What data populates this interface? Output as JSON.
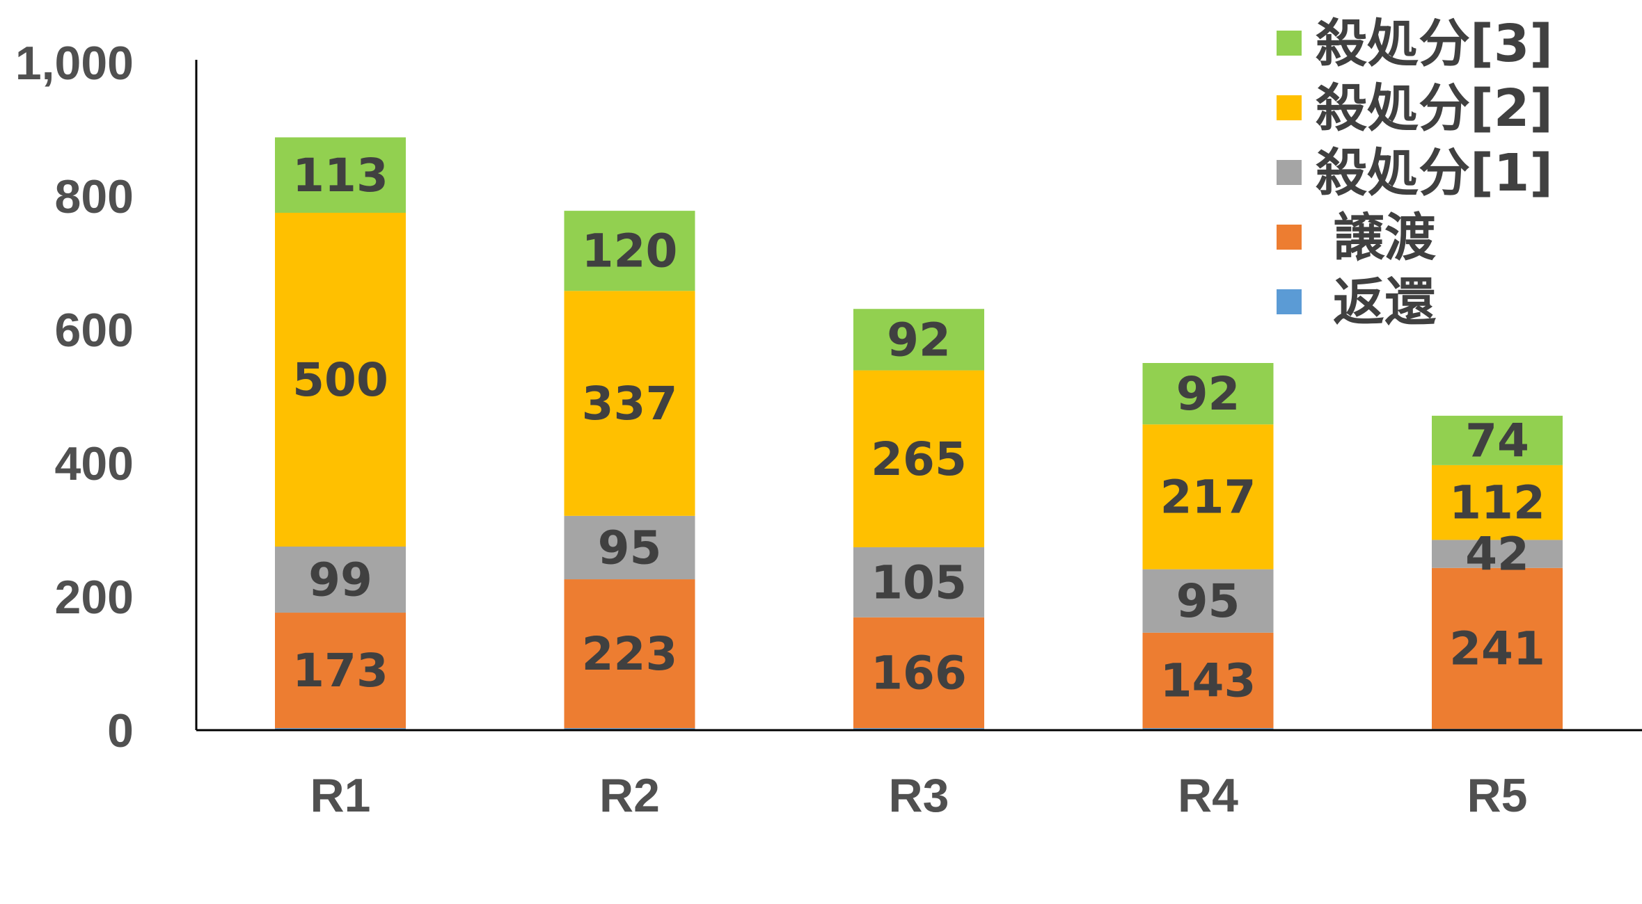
{
  "chart_data": {
    "type": "bar",
    "stacked": true,
    "categories": [
      "R1",
      "R2",
      "R3",
      "R4",
      "R5"
    ],
    "series": [
      {
        "name": "返還",
        "color": "#5B9BD5",
        "values": [
          3,
          3,
          3,
          3,
          2
        ]
      },
      {
        "name": "譲渡",
        "color": "#ED7D31",
        "values": [
          173,
          223,
          166,
          143,
          241
        ]
      },
      {
        "name": "殺処分[1]",
        "color": "#A5A5A5",
        "values": [
          99,
          95,
          105,
          95,
          42
        ]
      },
      {
        "name": "殺処分[2]",
        "color": "#FFC000",
        "values": [
          500,
          337,
          265,
          217,
          112
        ]
      },
      {
        "name": "殺処分[3]",
        "color": "#92D050",
        "values": [
          113,
          120,
          92,
          92,
          74
        ]
      }
    ],
    "data_labels": [
      {
        "series": "譲渡",
        "labels": [
          "173",
          "223",
          "166",
          "143",
          "241"
        ]
      },
      {
        "series": "殺処分[1]",
        "labels": [
          "99",
          "95",
          "105",
          "95",
          "42"
        ]
      },
      {
        "series": "殺処分[2]",
        "labels": [
          "500",
          "337",
          "265",
          "217",
          "112"
        ]
      },
      {
        "series": "殺処分[3]",
        "labels": [
          "113",
          "120",
          "92",
          "92",
          "74"
        ]
      }
    ],
    "yticks": [
      "0",
      "200",
      "400",
      "600",
      "800",
      "1,000"
    ],
    "ylim": [
      0,
      1000
    ],
    "grid": false,
    "legend_position": "top-right",
    "legend_order": [
      "殺処分[3]",
      "殺処分[2]",
      "殺処分[1]",
      "譲渡",
      "返還"
    ],
    "title": "",
    "xlabel": "",
    "ylabel": ""
  }
}
